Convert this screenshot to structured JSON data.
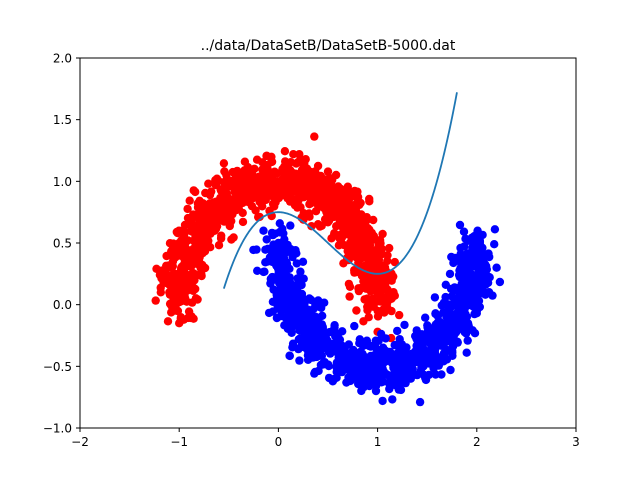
{
  "chart_data": {
    "type": "scatter",
    "title": "../data/DataSetB/DataSetB-5000.dat",
    "xlabel": "",
    "ylabel": "",
    "xlim": [
      -2,
      3
    ],
    "ylim": [
      -1,
      2
    ],
    "x_ticks": [
      "−2",
      "−1",
      "0",
      "1",
      "2",
      "3"
    ],
    "x_tick_values": [
      -2,
      -1,
      0,
      1,
      2,
      3
    ],
    "y_ticks": [
      "−1.0",
      "−0.5",
      "0.0",
      "0.5",
      "1.0",
      "1.5",
      "2.0"
    ],
    "y_tick_values": [
      -1.0,
      -0.5,
      0.0,
      0.5,
      1.0,
      1.5,
      2.0
    ],
    "grid": false,
    "legend": "none",
    "colors": {
      "class_a": "#ff0000",
      "class_b": "#0000ff",
      "boundary": "#1f77b4"
    },
    "series": [
      {
        "kind": "scatter",
        "color": "#ff0000",
        "shape": "upper half-moon",
        "arc_center": [
          0,
          0
        ],
        "arc_radius": 1.0,
        "angle_range_deg": [
          0,
          180
        ],
        "noise_std": 0.1,
        "count": 2500,
        "sample_points": [
          [
            -1.0,
            0.5
          ],
          [
            -0.7,
            0.7
          ],
          [
            0.0,
            1.0
          ],
          [
            0.7,
            0.7
          ],
          [
            1.0,
            0.1
          ],
          [
            1.1,
            0.4
          ],
          [
            -1.1,
            0.1
          ],
          [
            -1.0,
            -0.15
          ],
          [
            0.15,
            1.22
          ],
          [
            1.0,
            -0.22
          ]
        ]
      },
      {
        "kind": "scatter",
        "color": "#0000ff",
        "shape": "lower half-moon",
        "arc_center": [
          1,
          0.5
        ],
        "arc_radius": 1.0,
        "angle_range_deg": [
          180,
          360
        ],
        "noise_std": 0.1,
        "count": 2500,
        "sample_points": [
          [
            0.0,
            0.5
          ],
          [
            0.3,
            -0.2
          ],
          [
            1.0,
            -0.5
          ],
          [
            1.7,
            -0.2
          ],
          [
            2.0,
            0.5
          ],
          [
            -0.15,
            0.6
          ],
          [
            1.05,
            -0.78
          ],
          [
            2.2,
            0.3
          ]
        ]
      },
      {
        "kind": "line",
        "color": "#1f77b4",
        "function": "polynomial decision boundary",
        "coefficients_high_to_low": [
          1.0,
          -1.5,
          0.0,
          0.75
        ],
        "x_range": [
          -0.55,
          1.8
        ]
      }
    ]
  }
}
